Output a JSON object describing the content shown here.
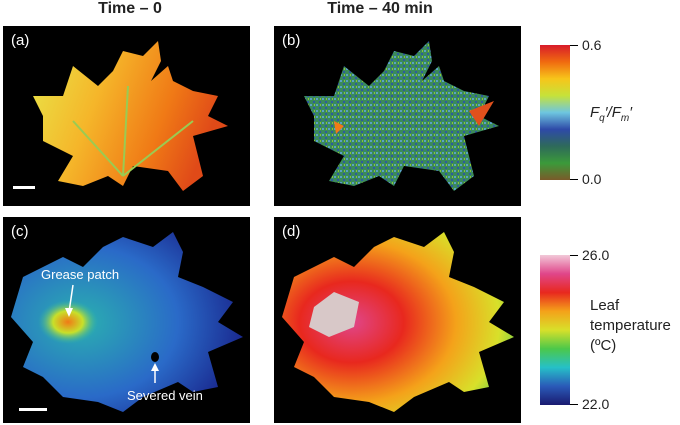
{
  "columns": {
    "left": "Time – 0",
    "right": "Time – 40 min"
  },
  "panels": {
    "a": "(a)",
    "b": "(b)",
    "c": "(c)",
    "d": "(d)"
  },
  "annotations": {
    "grease_patch": "Grease patch",
    "severed_vein": "Severed vein"
  },
  "colorbar_fluorescence": {
    "max_label": "0.6",
    "min_label": "0.0",
    "title_main": "F",
    "title_sub": "q",
    "title_sep": "′/F",
    "title_sub2": "m",
    "title_prime": "′",
    "colors": [
      "#d81b2a",
      "#f06a10",
      "#f7c51a",
      "#c6e23a",
      "#6ec6e0",
      "#2e4aa8",
      "#3b7d3a",
      "#7a5a2a"
    ]
  },
  "colorbar_temperature": {
    "max_label": "26.0",
    "min_label": "22.0",
    "title_line1": "Leaf",
    "title_line2": "temperature",
    "title_line3": "(ºC)",
    "colors": [
      "#f2c8d8",
      "#e0468a",
      "#e8281e",
      "#f4a21a",
      "#d8e02a",
      "#4cc84a",
      "#26c0c8",
      "#2a5ab8",
      "#1a1a70"
    ]
  }
}
